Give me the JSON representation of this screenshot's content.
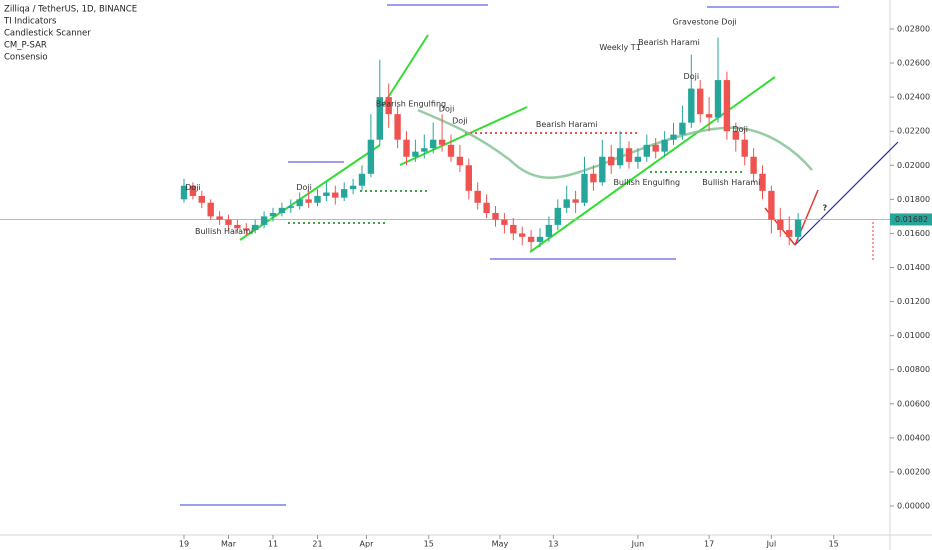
{
  "chart_data": {
    "type": "candlestick",
    "title": "Zilliqa / TetherUS, 1D, BINANCE",
    "indicators": [
      "TI Indicators",
      "Candlestick Scanner",
      "CM_P-SAR",
      "Consensio"
    ],
    "up_color": "#26a69a",
    "down_color": "#ef5350",
    "ylim": [
      -0.0017,
      0.0297
    ],
    "yticks": [
      {
        "value": 0.028,
        "label": "0.02800"
      },
      {
        "value": 0.026,
        "label": "0.02600"
      },
      {
        "value": 0.024,
        "label": "0.02400"
      },
      {
        "value": 0.022,
        "label": "0.02200"
      },
      {
        "value": 0.02,
        "label": "0.02000"
      },
      {
        "value": 0.018,
        "label": "0.01800"
      },
      {
        "value": 0.016,
        "label": "0.01600"
      },
      {
        "value": 0.014,
        "label": "0.01400"
      },
      {
        "value": 0.012,
        "label": "0.01200"
      },
      {
        "value": 0.01,
        "label": "0.01000"
      },
      {
        "value": 0.008,
        "label": "0.00800"
      },
      {
        "value": 0.006,
        "label": "0.00600"
      },
      {
        "value": 0.004,
        "label": "0.00400"
      },
      {
        "value": 0.002,
        "label": "0.00200"
      },
      {
        "value": 0,
        "label": "0.00000"
      }
    ],
    "xticks": [
      {
        "value": "Feb 19",
        "label": "19"
      },
      {
        "value": "Mar 1",
        "label": "Mar"
      },
      {
        "value": "Mar 11",
        "label": "11"
      },
      {
        "value": "Mar 21",
        "label": "21"
      },
      {
        "value": "Apr 1",
        "label": "Apr"
      },
      {
        "value": "Apr 15",
        "label": "15"
      },
      {
        "value": "May 1",
        "label": "May"
      },
      {
        "value": "May 13",
        "label": "13"
      },
      {
        "value": "Jun 1",
        "label": "Jun"
      },
      {
        "value": "Jun 17",
        "label": "17"
      },
      {
        "value": "Jul 1",
        "label": "Jul"
      },
      {
        "value": "Jul 15",
        "label": "15"
      }
    ],
    "last_price": {
      "value": 0.01682,
      "label": "0.01682"
    },
    "x": [
      "Feb 19",
      "Feb 21",
      "Feb 23",
      "Feb 25",
      "Feb 27",
      "Mar 1",
      "Mar 3",
      "Mar 5",
      "Mar 7",
      "Mar 9",
      "Mar 11",
      "Mar 13",
      "Mar 15",
      "Mar 17",
      "Mar 19",
      "Mar 21",
      "Mar 23",
      "Mar 25",
      "Mar 27",
      "Mar 29",
      "Mar 31",
      "Apr 2",
      "Apr 4",
      "Apr 6",
      "Apr 8",
      "Apr 10",
      "Apr 12",
      "Apr 14",
      "Apr 16",
      "Apr 18",
      "Apr 20",
      "Apr 22",
      "Apr 24",
      "Apr 26",
      "Apr 28",
      "Apr 30",
      "May 2",
      "May 4",
      "May 6",
      "May 8",
      "May 10",
      "May 12",
      "May 14",
      "May 16",
      "May 18",
      "May 20",
      "May 22",
      "May 24",
      "May 26",
      "May 28",
      "May 30",
      "Jun 1",
      "Jun 3",
      "Jun 5",
      "Jun 7",
      "Jun 9",
      "Jun 11",
      "Jun 13",
      "Jun 15",
      "Jun 17",
      "Jun 19",
      "Jun 21",
      "Jun 23",
      "Jun 25",
      "Jun 27",
      "Jun 29",
      "Jul 1",
      "Jul 3",
      "Jul 5",
      "Jul 7"
    ],
    "candles": [
      [
        0.018,
        0.0192,
        0.0178,
        0.0188
      ],
      [
        0.0188,
        0.019,
        0.018,
        0.0182
      ],
      [
        0.0182,
        0.0185,
        0.0175,
        0.0178
      ],
      [
        0.0178,
        0.018,
        0.0168,
        0.017
      ],
      [
        0.017,
        0.0173,
        0.0165,
        0.0168
      ],
      [
        0.0168,
        0.0171,
        0.0162,
        0.0165
      ],
      [
        0.0165,
        0.0168,
        0.016,
        0.0163
      ],
      [
        0.0163,
        0.0166,
        0.0159,
        0.0162
      ],
      [
        0.0162,
        0.0168,
        0.016,
        0.0165
      ],
      [
        0.0165,
        0.0173,
        0.0163,
        0.017
      ],
      [
        0.017,
        0.0175,
        0.0167,
        0.0172
      ],
      [
        0.0172,
        0.0178,
        0.017,
        0.0175
      ],
      [
        0.0175,
        0.018,
        0.0172,
        0.0176
      ],
      [
        0.0176,
        0.0184,
        0.0174,
        0.018
      ],
      [
        0.018,
        0.0185,
        0.0175,
        0.0178
      ],
      [
        0.0178,
        0.0186,
        0.0176,
        0.0182
      ],
      [
        0.0182,
        0.019,
        0.0179,
        0.0184
      ],
      [
        0.0184,
        0.0188,
        0.0177,
        0.0181
      ],
      [
        0.0181,
        0.019,
        0.0179,
        0.0186
      ],
      [
        0.0186,
        0.0192,
        0.0183,
        0.0188
      ],
      [
        0.0188,
        0.02,
        0.0185,
        0.0195
      ],
      [
        0.0195,
        0.023,
        0.0193,
        0.0215
      ],
      [
        0.0215,
        0.0262,
        0.0212,
        0.024
      ],
      [
        0.024,
        0.0248,
        0.0222,
        0.023
      ],
      [
        0.023,
        0.0235,
        0.021,
        0.0215
      ],
      [
        0.0215,
        0.022,
        0.02,
        0.0205
      ],
      [
        0.0205,
        0.0215,
        0.0202,
        0.0208
      ],
      [
        0.0208,
        0.0218,
        0.0204,
        0.021
      ],
      [
        0.021,
        0.0225,
        0.0207,
        0.0215
      ],
      [
        0.0215,
        0.023,
        0.0208,
        0.0212
      ],
      [
        0.0212,
        0.0218,
        0.0202,
        0.0205
      ],
      [
        0.0205,
        0.0212,
        0.0196,
        0.02
      ],
      [
        0.02,
        0.0204,
        0.018,
        0.0185
      ],
      [
        0.0185,
        0.019,
        0.0174,
        0.0178
      ],
      [
        0.0178,
        0.0183,
        0.0169,
        0.0172
      ],
      [
        0.0172,
        0.0176,
        0.0164,
        0.0168
      ],
      [
        0.0168,
        0.0172,
        0.016,
        0.0165
      ],
      [
        0.0165,
        0.0169,
        0.0156,
        0.016
      ],
      [
        0.016,
        0.0164,
        0.0153,
        0.0158
      ],
      [
        0.0158,
        0.0162,
        0.015,
        0.0155
      ],
      [
        0.0155,
        0.0163,
        0.0152,
        0.0158
      ],
      [
        0.0158,
        0.017,
        0.0155,
        0.0165
      ],
      [
        0.0165,
        0.018,
        0.0162,
        0.0175
      ],
      [
        0.0175,
        0.0188,
        0.0172,
        0.018
      ],
      [
        0.018,
        0.0185,
        0.0172,
        0.0178
      ],
      [
        0.0178,
        0.0205,
        0.0176,
        0.0195
      ],
      [
        0.0195,
        0.02,
        0.0185,
        0.019
      ],
      [
        0.019,
        0.0215,
        0.0188,
        0.0205
      ],
      [
        0.0205,
        0.0212,
        0.0195,
        0.02
      ],
      [
        0.02,
        0.022,
        0.0198,
        0.021
      ],
      [
        0.021,
        0.0214,
        0.0198,
        0.0202
      ],
      [
        0.0202,
        0.021,
        0.0198,
        0.0205
      ],
      [
        0.0205,
        0.0218,
        0.0202,
        0.0212
      ],
      [
        0.0212,
        0.0216,
        0.0204,
        0.0208
      ],
      [
        0.0208,
        0.022,
        0.0205,
        0.0215
      ],
      [
        0.0215,
        0.0225,
        0.0212,
        0.0218
      ],
      [
        0.0218,
        0.0235,
        0.0215,
        0.0225
      ],
      [
        0.0225,
        0.0265,
        0.0222,
        0.0245
      ],
      [
        0.0245,
        0.025,
        0.0225,
        0.023
      ],
      [
        0.023,
        0.024,
        0.022,
        0.0228
      ],
      [
        0.0228,
        0.0275,
        0.0225,
        0.025
      ],
      [
        0.025,
        0.0255,
        0.0215,
        0.022
      ],
      [
        0.022,
        0.0225,
        0.0208,
        0.0215
      ],
      [
        0.0215,
        0.0222,
        0.02,
        0.0205
      ],
      [
        0.0205,
        0.021,
        0.019,
        0.0195
      ],
      [
        0.0195,
        0.02,
        0.018,
        0.0185
      ],
      [
        0.0185,
        0.0188,
        0.016,
        0.0168
      ],
      [
        0.0168,
        0.0175,
        0.0158,
        0.0162
      ],
      [
        0.0162,
        0.017,
        0.0153,
        0.0158
      ],
      [
        0.0158,
        0.0172,
        0.0155,
        0.0168
      ]
    ],
    "annotations": [
      {
        "text": "Weekly T1",
        "x": "May 28",
        "y": 0.0269,
        "color": "#787b86",
        "size": 14
      },
      {
        "text": "Gravestone Doji",
        "x": "Jun 16",
        "y": 0.0284,
        "color": "#ef5350",
        "size": 8
      },
      {
        "text": "Bearish Harami",
        "x": "Jun 8",
        "y": 0.0272,
        "color": "#ef5350",
        "size": 8
      },
      {
        "text": "Bearish Harami",
        "x": "May 16",
        "y": 0.0224,
        "color": "#ef5350",
        "size": 8
      },
      {
        "text": "Bearish Engulfing",
        "x": "Apr 11",
        "y": 0.0236,
        "color": "#ef5350",
        "size": 8
      },
      {
        "text": "Bullish Harami",
        "x": "Feb 28",
        "y": 0.0161,
        "color": "#4caf50",
        "size": 8
      },
      {
        "text": "Bullish Engulfing",
        "x": "Jun 3",
        "y": 0.019,
        "color": "#4caf50",
        "size": 8
      },
      {
        "text": "Bullish Harami",
        "x": "Jun 22",
        "y": 0.019,
        "color": "#4caf50",
        "size": 8
      },
      {
        "text": "Doji",
        "x": "Feb 21",
        "y": 0.0187,
        "color": "#333333",
        "size": 8
      },
      {
        "text": "Doji",
        "x": "Mar 18",
        "y": 0.0187,
        "color": "#333333",
        "size": 8
      },
      {
        "text": "Doji",
        "x": "Apr 19",
        "y": 0.0233,
        "color": "#333333",
        "size": 8
      },
      {
        "text": "Doji",
        "x": "Apr 22",
        "y": 0.0226,
        "color": "#333333",
        "size": 8
      },
      {
        "text": "Doji",
        "x": "Jun 13",
        "y": 0.0252,
        "color": "#333333",
        "size": 8
      },
      {
        "text": "Doji",
        "x": "Jun 24",
        "y": 0.0221,
        "color": "#333333",
        "size": 8
      },
      {
        "text": "?",
        "x": "Jul 13",
        "y": 0.0175,
        "color": "#e53935",
        "size": 16
      }
    ]
  }
}
